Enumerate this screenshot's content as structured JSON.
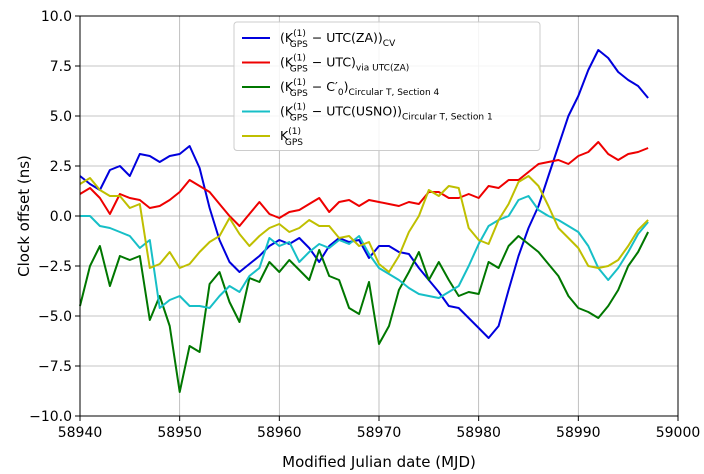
{
  "chart_data": {
    "type": "line",
    "xlabel": "Modified Julian date (MJD)",
    "ylabel": "Clock offset (ns)",
    "xlim": [
      58940,
      59000
    ],
    "ylim": [
      -10.0,
      10.0
    ],
    "xticks": [
      "58940",
      "58950",
      "58960",
      "58970",
      "58980",
      "58990",
      "59000"
    ],
    "yticks": [
      "−10.0",
      "−7.5",
      "−5.0",
      "−2.5",
      "0.0",
      "2.5",
      "5.0",
      "7.5",
      "10.0"
    ],
    "grid": true,
    "legend_position": "top-center",
    "series": [
      {
        "name": "(K_GPS^(1) − UTC(ZA))_CV",
        "legend": {
          "open": "(K",
          "sup": "(1)",
          "sub": "GPS",
          "rest": " − UTC(ZA))",
          "tail": "CV"
        },
        "color": "#0000dd",
        "x": [
          58940.0,
          58941.0,
          58942.0,
          58943.0,
          58944.0,
          58945.0,
          58946.0,
          58947.0,
          58948.0,
          58949.0,
          58950.0,
          58951.0,
          58952.0,
          58953.0,
          58954.0,
          58955.0,
          58956.0,
          58957.0,
          58958.0,
          58959.0,
          58960.0,
          58961.0,
          58962.0,
          58963.0,
          58964.0,
          58965.0,
          58966.0,
          58967.0,
          58968.0,
          58969.0,
          58970.0,
          58971.0,
          58972.0,
          58973.0,
          58974.0,
          58975.0,
          58976.0,
          58977.0,
          58978.0,
          58979.0,
          58980.0,
          58981.0,
          58982.0,
          58983.0,
          58984.0,
          58985.0,
          58986.0,
          58987.0,
          58988.0,
          58989.0,
          58990.0,
          58991.0,
          58992.0,
          58993.0,
          58994.0,
          58995.0,
          58996.0,
          58997.0
        ],
        "y": [
          2.0,
          1.6,
          1.3,
          2.3,
          2.5,
          2.0,
          3.1,
          3.0,
          2.7,
          3.0,
          3.1,
          3.5,
          2.4,
          0.4,
          -1.2,
          -2.3,
          -2.8,
          -2.4,
          -2.0,
          -1.5,
          -1.2,
          -1.4,
          -1.1,
          -1.6,
          -2.3,
          -1.5,
          -1.1,
          -1.3,
          -1.2,
          -2.1,
          -1.5,
          -1.5,
          -1.8,
          -1.9,
          -2.6,
          -3.2,
          -3.8,
          -4.5,
          -4.6,
          -5.1,
          -5.6,
          -6.1,
          -5.5,
          -3.7,
          -2.0,
          -0.6,
          0.5,
          2.0,
          3.5,
          5.0,
          6.0,
          7.3,
          8.3,
          7.9,
          7.2,
          6.8,
          6.5,
          5.9
        ]
      },
      {
        "name": "(K_GPS^(1) − UTC)_via UTC(ZA)",
        "legend": {
          "open": "(K",
          "sup": "(1)",
          "sub": "GPS",
          "rest": " − UTC)",
          "tail": "via UTC(ZA)"
        },
        "color": "#ee0000",
        "x": [
          58940.0,
          58941.0,
          58942.0,
          58943.0,
          58944.0,
          58945.0,
          58946.0,
          58947.0,
          58948.0,
          58949.0,
          58950.0,
          58951.0,
          58952.0,
          58953.0,
          58954.0,
          58955.0,
          58956.0,
          58957.0,
          58958.0,
          58959.0,
          58960.0,
          58961.0,
          58962.0,
          58963.0,
          58964.0,
          58965.0,
          58966.0,
          58967.0,
          58968.0,
          58969.0,
          58970.0,
          58971.0,
          58972.0,
          58973.0,
          58974.0,
          58975.0,
          58976.0,
          58977.0,
          58978.0,
          58979.0,
          58980.0,
          58981.0,
          58982.0,
          58983.0,
          58984.0,
          58985.0,
          58986.0,
          58987.0,
          58988.0,
          58989.0,
          58990.0,
          58991.0,
          58992.0,
          58993.0,
          58994.0,
          58995.0,
          58996.0,
          58997.0
        ],
        "y": [
          1.1,
          1.4,
          0.9,
          0.1,
          1.1,
          0.9,
          0.8,
          0.4,
          0.5,
          0.8,
          1.2,
          1.8,
          1.5,
          1.2,
          0.6,
          0.0,
          -0.5,
          0.1,
          0.7,
          0.1,
          -0.1,
          0.2,
          0.3,
          0.6,
          0.9,
          0.2,
          0.7,
          0.8,
          0.5,
          0.8,
          0.7,
          0.6,
          0.5,
          0.7,
          0.6,
          1.2,
          1.2,
          0.9,
          0.9,
          1.1,
          0.9,
          1.5,
          1.4,
          1.8,
          1.8,
          2.2,
          2.6,
          2.7,
          2.8,
          2.6,
          3.0,
          3.2,
          3.7,
          3.1,
          2.8,
          3.1,
          3.2,
          3.4
        ]
      },
      {
        "name": "(K_GPS^(1) − C'_0)_Circular T, Section 4",
        "legend": {
          "open": "(K",
          "sup": "(1)",
          "sub": "GPS",
          "rest": " − C′",
          "rest_sub": "0",
          "close": ")",
          "tail": "Circular T, Section 4"
        },
        "color": "#007700",
        "x": [
          58940.0,
          58941.0,
          58942.0,
          58943.0,
          58944.0,
          58945.0,
          58946.0,
          58947.0,
          58948.0,
          58949.0,
          58950.0,
          58951.0,
          58952.0,
          58953.0,
          58954.0,
          58955.0,
          58956.0,
          58957.0,
          58958.0,
          58959.0,
          58960.0,
          58961.0,
          58962.0,
          58963.0,
          58964.0,
          58965.0,
          58966.0,
          58967.0,
          58968.0,
          58969.0,
          58970.0,
          58971.0,
          58972.0,
          58973.0,
          58974.0,
          58975.0,
          58976.0,
          58977.0,
          58978.0,
          58979.0,
          58980.0,
          58981.0,
          58982.0,
          58983.0,
          58984.0,
          58985.0,
          58986.0,
          58987.0,
          58988.0,
          58989.0,
          58990.0,
          58991.0,
          58992.0,
          58993.0,
          58994.0,
          58995.0,
          58996.0,
          58997.0
        ],
        "y": [
          -4.5,
          -2.5,
          -1.5,
          -3.5,
          -2.0,
          -2.2,
          -2.0,
          -5.2,
          -4.0,
          -5.5,
          -8.8,
          -6.5,
          -6.8,
          -3.4,
          -2.8,
          -4.3,
          -5.3,
          -3.1,
          -3.3,
          -2.3,
          -2.8,
          -2.2,
          -2.7,
          -3.2,
          -1.7,
          -3.0,
          -3.2,
          -4.6,
          -4.9,
          -3.3,
          -6.4,
          -5.5,
          -3.7,
          -2.8,
          -1.8,
          -3.2,
          -2.3,
          -3.2,
          -4.0,
          -3.8,
          -3.9,
          -2.3,
          -2.6,
          -1.5,
          -1.0,
          -1.4,
          -1.8,
          -2.4,
          -3.0,
          -4.0,
          -4.6,
          -4.8,
          -5.1,
          -4.5,
          -3.7,
          -2.5,
          -1.8,
          -0.8
        ]
      },
      {
        "name": "(K_GPS^(1) − UTC(USNO))_Circular T, Section 1",
        "legend": {
          "open": "(K",
          "sup": "(1)",
          "sub": "GPS",
          "rest": " − UTC(USNO))",
          "tail": "Circular T, Section 1"
        },
        "color": "#17bfc7",
        "x": [
          58940.0,
          58941.0,
          58942.0,
          58943.0,
          58944.0,
          58945.0,
          58946.0,
          58947.0,
          58948.0,
          58949.0,
          58950.0,
          58951.0,
          58952.0,
          58953.0,
          58954.0,
          58955.0,
          58956.0,
          58957.0,
          58958.0,
          58959.0,
          58960.0,
          58961.0,
          58962.0,
          58963.0,
          58964.0,
          58965.0,
          58966.0,
          58967.0,
          58968.0,
          58969.0,
          58970.0,
          58971.0,
          58972.0,
          58973.0,
          58974.0,
          58975.0,
          58976.0,
          58977.0,
          58978.0,
          58979.0,
          58980.0,
          58981.0,
          58982.0,
          58983.0,
          58984.0,
          58985.0,
          58986.0,
          58987.0,
          58988.0,
          58989.0,
          58990.0,
          58991.0,
          58992.0,
          58993.0,
          58994.0,
          58995.0,
          58996.0,
          58997.0
        ],
        "y": [
          0.0,
          0.0,
          -0.5,
          -0.6,
          -0.8,
          -1.0,
          -1.6,
          -1.2,
          -4.6,
          -4.2,
          -4.0,
          -4.5,
          -4.5,
          -4.6,
          -4.0,
          -3.5,
          -3.8,
          -3.0,
          -2.6,
          -1.1,
          -1.5,
          -1.3,
          -2.3,
          -1.8,
          -1.4,
          -1.6,
          -1.2,
          -1.4,
          -1.0,
          -1.9,
          -2.6,
          -2.9,
          -3.2,
          -3.6,
          -3.9,
          -4.0,
          -4.1,
          -3.8,
          -3.5,
          -2.5,
          -1.4,
          -0.5,
          -0.2,
          0.0,
          0.8,
          1.0,
          0.3,
          0.0,
          -0.2,
          -0.5,
          -0.8,
          -1.5,
          -2.6,
          -3.2,
          -2.6,
          -1.8,
          -0.9,
          -0.3
        ]
      },
      {
        "name": "K_GPS^(1)",
        "legend": {
          "open": "K",
          "sup": "(1)",
          "sub": "GPS",
          "rest": "",
          "tail": ""
        },
        "color": "#bfbf00",
        "x": [
          58940.0,
          58941.0,
          58942.0,
          58943.0,
          58944.0,
          58945.0,
          58946.0,
          58947.0,
          58948.0,
          58949.0,
          58950.0,
          58951.0,
          58952.0,
          58953.0,
          58954.0,
          58955.0,
          58956.0,
          58957.0,
          58958.0,
          58959.0,
          58960.0,
          58961.0,
          58962.0,
          58963.0,
          58964.0,
          58965.0,
          58966.0,
          58967.0,
          58968.0,
          58969.0,
          58970.0,
          58971.0,
          58972.0,
          58973.0,
          58974.0,
          58975.0,
          58976.0,
          58977.0,
          58978.0,
          58979.0,
          58980.0,
          58981.0,
          58982.0,
          58983.0,
          58984.0,
          58985.0,
          58986.0,
          58987.0,
          58988.0,
          58989.0,
          58990.0,
          58991.0,
          58992.0,
          58993.0,
          58994.0,
          58995.0,
          58996.0,
          58997.0
        ],
        "y": [
          1.6,
          1.9,
          1.3,
          1.0,
          1.0,
          0.4,
          0.6,
          -2.6,
          -2.4,
          -1.8,
          -2.6,
          -2.4,
          -1.8,
          -1.3,
          -1.0,
          -0.1,
          -0.9,
          -1.5,
          -1.0,
          -0.6,
          -0.4,
          -0.8,
          -0.6,
          -0.2,
          -0.5,
          -0.5,
          -1.1,
          -1.0,
          -1.5,
          -1.3,
          -2.4,
          -2.8,
          -2.0,
          -0.8,
          0.0,
          1.3,
          1.0,
          1.5,
          1.4,
          -0.6,
          -1.2,
          -1.4,
          -0.2,
          0.6,
          1.7,
          2.0,
          1.5,
          0.5,
          -0.6,
          -1.1,
          -1.6,
          -2.5,
          -2.6,
          -2.5,
          -2.2,
          -1.5,
          -0.7,
          -0.2
        ]
      }
    ]
  }
}
